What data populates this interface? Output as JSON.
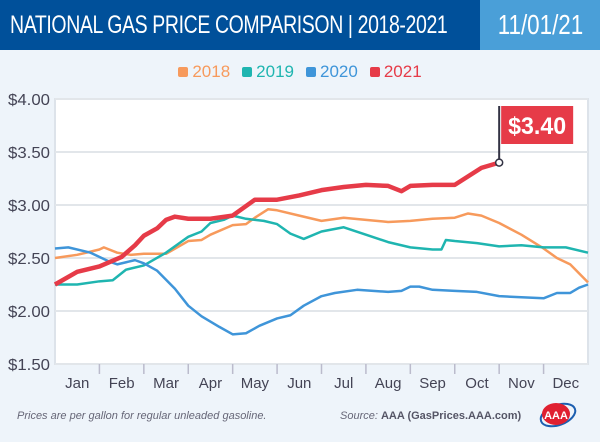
{
  "header": {
    "title": "NATIONAL GAS PRICE COMPARISON | 2018-2021",
    "date": "11/01/21"
  },
  "footer": {
    "note": "Prices are per gallon for regular unleaded gasoline.",
    "source_label": "Source:",
    "source": "AAA (GasPrices.AAA.com)",
    "logo": "AAA"
  },
  "callout": {
    "label": "$3.40",
    "value": 3.4
  },
  "chart_data": {
    "type": "line",
    "title": "NATIONAL GAS PRICE COMPARISON | 2018-2021",
    "xlabel": "",
    "ylabel": "",
    "x_ticks": [
      "Jan",
      "Feb",
      "Mar",
      "Apr",
      "May",
      "Jun",
      "Jul",
      "Aug",
      "Sep",
      "Oct",
      "Nov",
      "Dec"
    ],
    "y_ticks": [
      "$1.50",
      "$2.00",
      "$2.50",
      "$3.00",
      "$3.50",
      "$4.00"
    ],
    "y_tick_values": [
      1.5,
      2.0,
      2.5,
      3.0,
      3.5,
      4.0
    ],
    "ylim": [
      1.5,
      4.0
    ],
    "xlim": [
      0,
      12
    ],
    "x_unit": "month of year",
    "grid": true,
    "legend_position": "top-center",
    "series": [
      {
        "name": "2018",
        "color": "#f79a5c",
        "x": [
          0,
          0.5,
          1,
          1.1,
          1.4,
          1.7,
          2,
          2.5,
          3,
          3.3,
          3.5,
          4,
          4.3,
          4.5,
          4.8,
          5,
          5.5,
          6,
          6.5,
          7,
          7.5,
          8,
          8.5,
          9,
          9.3,
          9.6,
          10,
          10.5,
          11,
          11.3,
          11.6,
          12
        ],
        "y": [
          2.5,
          2.53,
          2.58,
          2.6,
          2.55,
          2.53,
          2.54,
          2.54,
          2.66,
          2.67,
          2.72,
          2.81,
          2.82,
          2.88,
          2.96,
          2.95,
          2.9,
          2.85,
          2.88,
          2.86,
          2.84,
          2.85,
          2.87,
          2.88,
          2.92,
          2.9,
          2.83,
          2.72,
          2.59,
          2.5,
          2.44,
          2.27
        ]
      },
      {
        "name": "2019",
        "color": "#1fb5b0",
        "x": [
          0,
          0.5,
          1,
          1.3,
          1.6,
          2,
          2.5,
          2.8,
          3,
          3.3,
          3.5,
          3.8,
          4,
          4.3,
          4.7,
          5,
          5.3,
          5.6,
          6,
          6.5,
          7,
          7.5,
          8,
          8.5,
          8.7,
          8.8,
          9,
          9.5,
          10,
          10.5,
          11,
          11.5,
          12
        ],
        "y": [
          2.25,
          2.25,
          2.28,
          2.29,
          2.39,
          2.43,
          2.55,
          2.64,
          2.7,
          2.75,
          2.83,
          2.86,
          2.9,
          2.87,
          2.85,
          2.82,
          2.73,
          2.68,
          2.75,
          2.79,
          2.72,
          2.65,
          2.6,
          2.58,
          2.58,
          2.67,
          2.66,
          2.64,
          2.61,
          2.62,
          2.6,
          2.6,
          2.55
        ]
      },
      {
        "name": "2020",
        "color": "#3f95d9",
        "x": [
          0,
          0.3,
          0.8,
          1.2,
          1.4,
          1.8,
          2,
          2.3,
          2.7,
          3,
          3.3,
          3.7,
          4,
          4.3,
          4.6,
          5,
          5.3,
          5.6,
          6,
          6.3,
          6.8,
          7.5,
          7.8,
          8,
          8.2,
          8.5,
          9,
          9.5,
          10,
          10.5,
          11,
          11.3,
          11.6,
          11.8,
          12
        ],
        "y": [
          2.59,
          2.6,
          2.55,
          2.47,
          2.44,
          2.48,
          2.45,
          2.38,
          2.21,
          2.05,
          1.95,
          1.85,
          1.78,
          1.79,
          1.86,
          1.93,
          1.96,
          2.05,
          2.14,
          2.17,
          2.2,
          2.18,
          2.19,
          2.23,
          2.23,
          2.2,
          2.19,
          2.18,
          2.14,
          2.13,
          2.12,
          2.17,
          2.17,
          2.22,
          2.25
        ]
      },
      {
        "name": "2021",
        "color": "#e63b48",
        "x": [
          0,
          0.5,
          1,
          1.5,
          1.8,
          2,
          2.3,
          2.5,
          2.7,
          3,
          3.5,
          4,
          4.3,
          4.5,
          5,
          5.5,
          6,
          6.5,
          7,
          7.5,
          7.8,
          8,
          8.5,
          9,
          9.3,
          9.6,
          10
        ],
        "y": [
          2.25,
          2.37,
          2.42,
          2.51,
          2.62,
          2.71,
          2.78,
          2.86,
          2.89,
          2.87,
          2.87,
          2.9,
          2.99,
          3.05,
          3.05,
          3.09,
          3.14,
          3.17,
          3.19,
          3.18,
          3.13,
          3.18,
          3.19,
          3.19,
          3.27,
          3.35,
          3.4
        ]
      }
    ]
  }
}
